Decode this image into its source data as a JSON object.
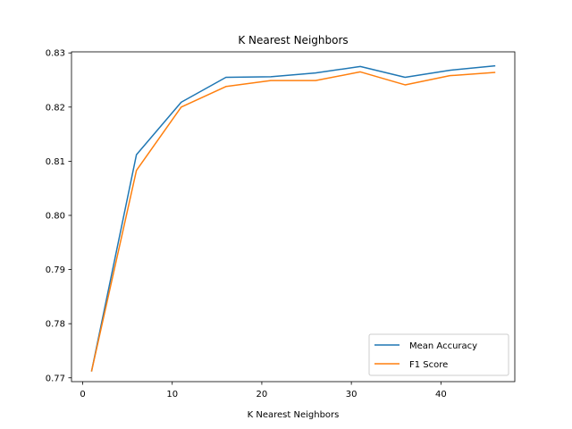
{
  "chart_data": {
    "type": "line",
    "title": "K Nearest Neighbors",
    "xlabel": "K Nearest Neighbors",
    "ylabel": "",
    "x": [
      1,
      6,
      11,
      16,
      21,
      26,
      31,
      36,
      41,
      46
    ],
    "xlim": [
      -1.25,
      48.25
    ],
    "ylim": [
      0.7693,
      0.8302
    ],
    "xticks": [
      0,
      10,
      20,
      30,
      40
    ],
    "yticks": [
      0.77,
      0.78,
      0.79,
      0.8,
      0.81,
      0.82,
      0.83
    ],
    "xtick_labels": [
      "0",
      "10",
      "20",
      "30",
      "40"
    ],
    "ytick_labels": [
      "0.77",
      "0.78",
      "0.79",
      "0.80",
      "0.81",
      "0.82",
      "0.83"
    ],
    "grid": false,
    "legend_position": "lower right",
    "series": [
      {
        "name": "Mean Accuracy",
        "color": "#1f77b4",
        "values": [
          0.7713,
          0.8112,
          0.8209,
          0.8255,
          0.8256,
          0.8263,
          0.8275,
          0.8255,
          0.8268,
          0.8276
        ]
      },
      {
        "name": "F1 Score",
        "color": "#ff7f0e",
        "values": [
          0.7713,
          0.8083,
          0.82,
          0.8238,
          0.8249,
          0.8249,
          0.8265,
          0.8241,
          0.8258,
          0.8264
        ]
      }
    ]
  }
}
